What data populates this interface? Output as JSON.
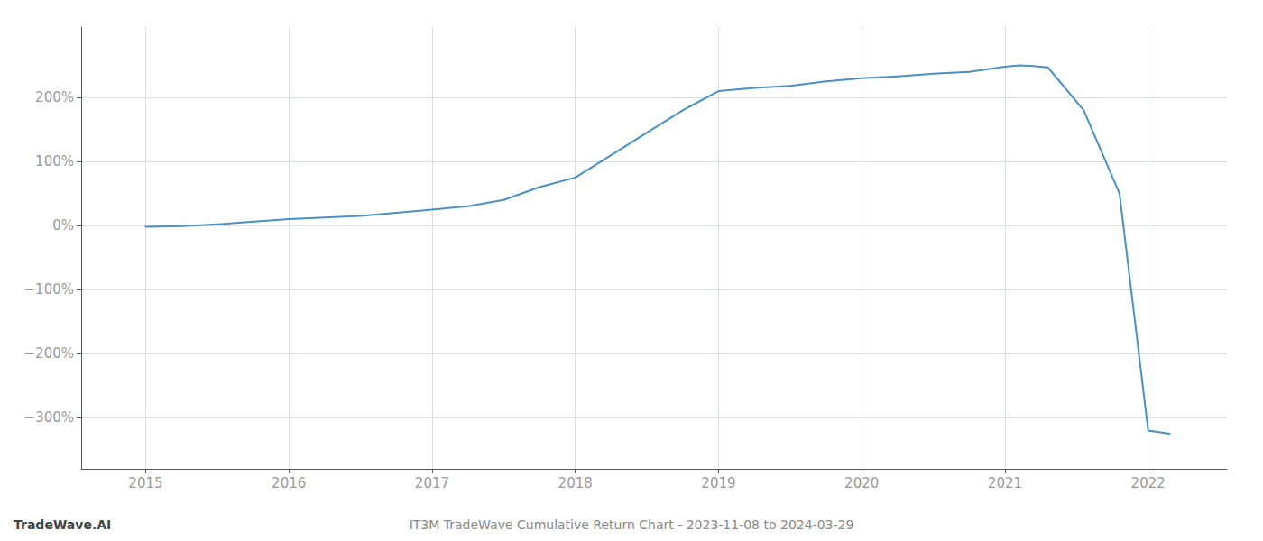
{
  "chart_data": {
    "type": "line",
    "title": "IT3M TradeWave Cumulative Return Chart - 2023-11-08 to 2024-03-29",
    "annotations": [
      "TradeWave.AI"
    ],
    "x": [
      2015.0,
      2015.25,
      2015.5,
      2016.0,
      2016.5,
      2017.0,
      2017.25,
      2017.5,
      2017.75,
      2018.0,
      2018.25,
      2018.5,
      2018.75,
      2019.0,
      2019.25,
      2019.5,
      2019.75,
      2020.0,
      2020.25,
      2020.5,
      2020.75,
      2021.0,
      2021.1,
      2021.2,
      2021.3,
      2021.55,
      2021.8,
      2022.0,
      2022.15
    ],
    "values": [
      -2,
      -1,
      2,
      10,
      15,
      25,
      30,
      40,
      60,
      75,
      110,
      145,
      180,
      210,
      215,
      218,
      225,
      230,
      233,
      237,
      240,
      248,
      250,
      249,
      247,
      180,
      50,
      -320,
      -325
    ],
    "color": "#4a90c4",
    "xlim": [
      2014.55,
      2022.55
    ],
    "xticks": [
      2015,
      2016,
      2017,
      2018,
      2019,
      2020,
      2021,
      2022
    ],
    "ylim": [
      -380,
      310
    ],
    "yticks": [
      {
        "value": 200,
        "label": "200%"
      },
      {
        "value": 100,
        "label": "100%"
      },
      {
        "value": 0,
        "label": "0%"
      },
      {
        "value": -100,
        "label": "−100%"
      },
      {
        "value": -200,
        "label": "−200%"
      },
      {
        "value": -300,
        "label": "−300%"
      }
    ],
    "grid": true
  }
}
